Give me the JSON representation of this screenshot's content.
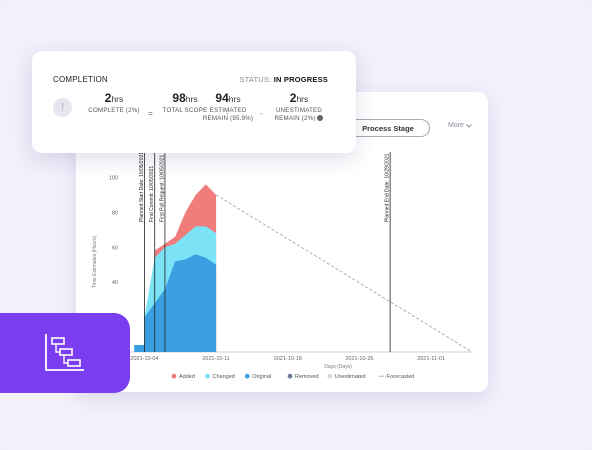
{
  "completion": {
    "title": "COMPLETION",
    "status_label": "STATUS:",
    "status_value": "IN PROGRESS",
    "info_icon": "exclamation-icon",
    "info_glyph": "!",
    "metrics": [
      {
        "value": "2",
        "unit": "hrs",
        "label_lines": [
          "COMPLETE (2%)"
        ]
      },
      {
        "value": "98",
        "unit": "hrs",
        "label_lines": [
          "TOTAL SCOPE"
        ]
      },
      {
        "value": "94",
        "unit": "hrs",
        "label_lines": [
          "ESTIMATED",
          "REMAIN (95.9%)"
        ]
      },
      {
        "value": "2",
        "unit": "hrs",
        "label_lines": [
          "UNESTIMATED",
          "REMAIN (2%)"
        ]
      }
    ],
    "operators": [
      "=",
      "-",
      "-"
    ]
  },
  "chart_card": {
    "process_stage_label": "Process Stage",
    "more_label": "More",
    "more_icon": "chevron-down-icon"
  },
  "chart_data": {
    "type": "area",
    "ylabel": "Time Estimates (Hours)",
    "xlabel": "Days (Days)",
    "yticks": [
      40,
      60,
      80,
      100
    ],
    "ylim": [
      0,
      110
    ],
    "xticks": [
      "2021-10-04",
      "2021-10-11",
      "2021-10-18",
      "2021-10-25",
      "2021-11-01"
    ],
    "x_start": "2021-10-02",
    "x_end": "2021-11-05",
    "series": [
      {
        "name": "Original",
        "color": "#3a9fe0",
        "points": [
          [
            "2021-10-03",
            4
          ],
          [
            "2021-10-04",
            4
          ],
          [
            "2021-10-04",
            20
          ],
          [
            "2021-10-05",
            28
          ],
          [
            "2021-10-06",
            36
          ],
          [
            "2021-10-07",
            52
          ],
          [
            "2021-10-08",
            53
          ],
          [
            "2021-10-09",
            56
          ],
          [
            "2021-10-10",
            54
          ],
          [
            "2021-10-11",
            50
          ],
          [
            "2021-10-11",
            0
          ]
        ]
      },
      {
        "name": "Changed",
        "color": "#7be3f5",
        "points": [
          [
            "2021-10-04",
            20
          ],
          [
            "2021-10-05",
            54
          ],
          [
            "2021-10-06",
            60
          ],
          [
            "2021-10-07",
            62
          ],
          [
            "2021-10-08",
            67
          ],
          [
            "2021-10-09",
            72
          ],
          [
            "2021-10-10",
            72
          ],
          [
            "2021-10-11",
            68
          ]
        ]
      },
      {
        "name": "Added",
        "color": "#f07c7c",
        "points": [
          [
            "2021-10-05",
            58
          ],
          [
            "2021-10-06",
            62
          ],
          [
            "2021-10-07",
            66
          ],
          [
            "2021-10-08",
            80
          ],
          [
            "2021-10-09",
            90
          ],
          [
            "2021-10-10",
            96
          ],
          [
            "2021-10-11",
            90
          ]
        ]
      }
    ],
    "forecast": {
      "name": "Forecasted",
      "from": [
        "2021-10-11",
        90
      ],
      "to": [
        "2021-11-05",
        0
      ],
      "color": "#9a9aaa"
    },
    "markers": [
      {
        "date": "2021-10-04",
        "label": "Planned Start Date: 10/05/2021"
      },
      {
        "date": "2021-10-05",
        "label": "First Commit: 10/05/2021"
      },
      {
        "date": "2021-10-06",
        "label": "First Pull Request: 10/05/2021"
      },
      {
        "date": "2021-10-28",
        "label": "Planned End Date: 10/29/2021"
      }
    ],
    "legend": [
      {
        "name": "Added",
        "color": "#f07c7c",
        "kind": "dot"
      },
      {
        "name": "Changed",
        "color": "#7be3f5",
        "kind": "dot"
      },
      {
        "name": "Original",
        "color": "#3a9fe0",
        "kind": "dot"
      },
      {
        "name": "Removed",
        "color": "#6f7f9a",
        "kind": "dot"
      },
      {
        "name": "Unestimated",
        "color": "#d9d9e3",
        "kind": "dot"
      },
      {
        "name": "Forecasted",
        "color": "#9a9aaa",
        "kind": "dash"
      }
    ],
    "legend_position": "bottom"
  },
  "badge": {
    "icon": "gantt-chart-icon",
    "color": "#7a3df0"
  }
}
